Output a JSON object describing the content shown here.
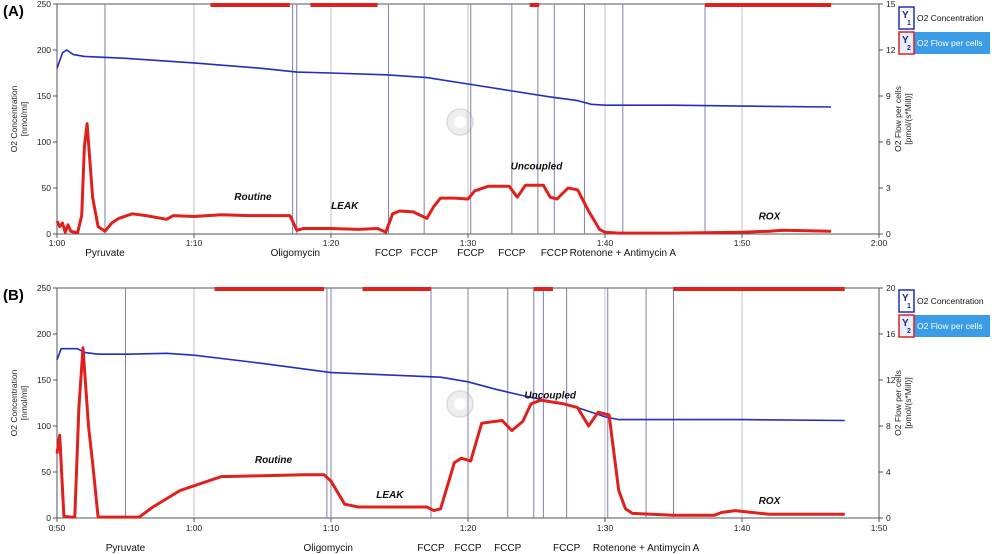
{
  "colors": {
    "o2_concentration": "#1f2fbf",
    "o2_flow": "#e0201c",
    "event_line": "#7f7fb0",
    "grid_gray": "#a9a9a9",
    "legend_highlight": "#3a9be6"
  },
  "chart_data": [
    {
      "type": "line",
      "panel_label": "(A)",
      "x_unit": "h:mm",
      "xlim": [
        "1:00",
        "2:00"
      ],
      "x_ticks": [
        "1:00",
        "1:10",
        "1:20",
        "1:30",
        "1:40",
        "1:50",
        "2:00"
      ],
      "ylabel_left": "O2 Concentration\n[nmol/ml]",
      "ylabel_right": "O2 Flow per cells\n[pmol/(s*Mill)]",
      "ylim_left": [
        0,
        250
      ],
      "ylim_right": [
        0,
        15
      ],
      "y_ticks_left": [
        0,
        50,
        100,
        150,
        200,
        250
      ],
      "y_ticks_right": [
        0,
        3,
        6,
        9,
        12,
        15
      ],
      "legend": {
        "placement": "top-right",
        "entries": [
          {
            "badge": "1",
            "label": "O2 Concentration",
            "selected": false
          },
          {
            "badge": "2",
            "label": "O2 Flow per cells",
            "selected": true
          }
        ]
      },
      "event_lines": [
        "1:03.5",
        "1:17.2",
        "1:17.5",
        "1:24.2",
        "1:26.8",
        "1:30.2",
        "1:33.2",
        "1:35.1",
        "1:36.3",
        "1:38.5",
        "1:41.3",
        "1:47.3"
      ],
      "event_labels": [
        {
          "text": "Pyruvate",
          "x": "1:03.5"
        },
        {
          "text": "Oligomycin",
          "x": "1:17.4"
        },
        {
          "text": "FCCP",
          "x": "1:24.2"
        },
        {
          "text": "FCCP",
          "x": "1:26.8"
        },
        {
          "text": "FCCP",
          "x": "1:30.2"
        },
        {
          "text": "FCCP",
          "x": "1:33.2"
        },
        {
          "text": "FCCP",
          "x": "1:36.3"
        },
        {
          "text": "Rotenone + Antimycin A",
          "x": "1:41.3"
        }
      ],
      "marks": [
        {
          "start": "1:11.2",
          "end": "1:17.0"
        },
        {
          "start": "1:18.5",
          "end": "1:23.4"
        },
        {
          "start": "1:34.5",
          "end": "1:35.2"
        },
        {
          "start": "1:47.3",
          "end": "1:56.5"
        }
      ],
      "annotations": [
        {
          "text": "Routine",
          "x": "1:14.3",
          "y": 37
        },
        {
          "text": "LEAK",
          "x": "1:21.0",
          "y": 27
        },
        {
          "text": "Uncoupled",
          "x": "1:35.0",
          "y": 70
        },
        {
          "text": "ROX",
          "x": "1:52.0",
          "y": 16
        }
      ],
      "series": [
        {
          "name": "O2 Concentration",
          "axis": "left",
          "x": [
            "1:00.0",
            "1:00.4",
            "1:00.7",
            "1:01.2",
            "1:02.0",
            "1:05.0",
            "1:10.0",
            "1:15.0",
            "1:17.5",
            "1:20.0",
            "1:24.0",
            "1:27.0",
            "1:30.0",
            "1:33.0",
            "1:36.0",
            "1:38.0",
            "1:39.0",
            "1:40.0",
            "1:45.0",
            "1:50.0",
            "1:56.5"
          ],
          "values": [
            180,
            197,
            200,
            195,
            193,
            191,
            186,
            180,
            176,
            175,
            173,
            170,
            163,
            156,
            149,
            145,
            141,
            140,
            140,
            139,
            138
          ]
        },
        {
          "name": "O2 Flow per cells",
          "axis": "left",
          "x": [
            "1:00.0",
            "1:00.2",
            "1:00.4",
            "1:00.6",
            "1:00.8",
            "1:01.0",
            "1:01.5",
            "1:01.8",
            "1:02.0",
            "1:02.2",
            "1:02.6",
            "1:03.0",
            "1:03.5",
            "1:04.0",
            "1:04.5",
            "1:05.5",
            "1:06.5",
            "1:08.0",
            "1:08.5",
            "1:10.0",
            "1:12.0",
            "1:14.0",
            "1:16.0",
            "1:17.0",
            "1:17.2",
            "1:17.5",
            "1:18.0",
            "1:20.0",
            "1:22.0",
            "1:23.4",
            "1:24.0",
            "1:24.5",
            "1:25.0",
            "1:26.0",
            "1:27.0",
            "1:27.5",
            "1:28.0",
            "1:29.0",
            "1:30.0",
            "1:30.5",
            "1:31.5",
            "1:33.0",
            "1:33.6",
            "1:34.2",
            "1:35.5",
            "1:36.0",
            "1:36.5",
            "1:37.3",
            "1:38.0",
            "1:38.8",
            "1:39.6",
            "1:40.0",
            "1:41.0",
            "1:45.0",
            "1:50.0",
            "1:52.0",
            "1:53.0",
            "1:56.5"
          ],
          "values": [
            14,
            8,
            12,
            2,
            10,
            3,
            1,
            20,
            95,
            120,
            40,
            8,
            3,
            12,
            17,
            22,
            20,
            16,
            20,
            19,
            21,
            20,
            20,
            20,
            14,
            4,
            6,
            6,
            5,
            6,
            2,
            22,
            25,
            24,
            17,
            30,
            39,
            39,
            38,
            47,
            52,
            52,
            40,
            53,
            53,
            40,
            38,
            50,
            48,
            25,
            5,
            2,
            1,
            1,
            2,
            3,
            4,
            3
          ]
        }
      ]
    },
    {
      "type": "line",
      "panel_label": "(B)",
      "x_unit": "h:mm",
      "xlim": [
        "0:50",
        "1:50"
      ],
      "x_ticks": [
        "0:50",
        "1:00",
        "1:10",
        "1:20",
        "1:30",
        "1:40",
        "1:50"
      ],
      "ylabel_left": "O2 Concentration\n[nmol/ml]",
      "ylabel_right": "O2 Flow per cells\n[pmol/(s*Mill)]",
      "ylim_left": [
        0,
        250
      ],
      "ylim_right": [
        0,
        20
      ],
      "y_ticks_left": [
        0,
        50,
        100,
        150,
        200,
        250
      ],
      "y_ticks_right": [
        0,
        4,
        8,
        12,
        16,
        20
      ],
      "legend": {
        "placement": "top-right",
        "entries": [
          {
            "badge": "1",
            "label": "O2 Concentration",
            "selected": false
          },
          {
            "badge": "2",
            "label": "O2 Flow per cells",
            "selected": true
          }
        ]
      },
      "event_lines": [
        "0:55.0",
        "1:09.7",
        "1:10.0",
        "1:17.3",
        "1:20.0",
        "1:22.9",
        "1:24.8",
        "1:25.5",
        "1:27.2",
        "1:30.2",
        "1:33.0",
        "1:35.0"
      ],
      "event_labels": [
        {
          "text": "Pyruvate",
          "x": "0:55.0"
        },
        {
          "text": "Oligomycin",
          "x": "1:09.8"
        },
        {
          "text": "FCCP",
          "x": "1:17.3"
        },
        {
          "text": "FCCP",
          "x": "1:20.0"
        },
        {
          "text": "FCCP",
          "x": "1:22.9"
        },
        {
          "text": "FCCP",
          "x": "1:27.2"
        },
        {
          "text": "Rotenone + Antimycin A",
          "x": "1:33.0"
        }
      ],
      "marks": [
        {
          "start": "1:01.5",
          "end": "1:09.5"
        },
        {
          "start": "1:12.3",
          "end": "1:17.3"
        },
        {
          "start": "1:24.8",
          "end": "1:26.2"
        },
        {
          "start": "1:35.0",
          "end": "1:47.5"
        }
      ],
      "annotations": [
        {
          "text": "Routine",
          "x": "1:05.8",
          "y": 60
        },
        {
          "text": "LEAK",
          "x": "1:14.3",
          "y": 22
        },
        {
          "text": "Uncoupled",
          "x": "1:26.0",
          "y": 130
        },
        {
          "text": "ROX",
          "x": "1:42.0",
          "y": 15
        }
      ],
      "series": [
        {
          "name": "O2 Concentration",
          "axis": "left",
          "x": [
            "0:50.0",
            "0:50.3",
            "0:51.5",
            "0:52.0",
            "0:53.0",
            "0:55.0",
            "0:58.0",
            "1:00.0",
            "1:05.0",
            "1:10.0",
            "1:15.0",
            "1:18.0",
            "1:20.0",
            "1:22.0",
            "1:24.0",
            "1:26.0",
            "1:28.0",
            "1:30.0",
            "1:31.0",
            "1:35.0",
            "1:40.0",
            "1:47.5"
          ],
          "values": [
            172,
            184,
            184,
            180,
            178,
            178,
            179,
            177,
            168,
            158,
            155,
            153,
            148,
            140,
            133,
            127,
            120,
            110,
            107,
            107,
            107,
            106
          ]
        },
        {
          "name": "O2 Flow per cells",
          "axis": "left",
          "x": [
            "0:50.0",
            "0:50.2",
            "0:50.5",
            "0:51.0",
            "0:51.3",
            "0:51.6",
            "0:51.9",
            "0:52.3",
            "0:52.6",
            "0:53.0",
            "0:53.5",
            "0:54.0",
            "0:55.0",
            "0:56.0",
            "0:57.0",
            "0:59.0",
            "1:01.0",
            "1:02.0",
            "1:05.0",
            "1:08.0",
            "1:09.5",
            "1:10.0",
            "1:11.0",
            "1:12.0",
            "1:16.0",
            "1:17.0",
            "1:17.5",
            "1:18.0",
            "1:19.0",
            "1:19.5",
            "1:20.2",
            "1:21.0",
            "1:22.5",
            "1:23.2",
            "1:24.0",
            "1:24.6",
            "1:25.3",
            "1:27.0",
            "1:28.0",
            "1:28.8",
            "1:29.5",
            "1:30.3",
            "1:31.0",
            "1:31.5",
            "1:32.0",
            "1:35.0",
            "1:38.0",
            "1:38.5",
            "1:39.5",
            "1:42.0",
            "1:44.0",
            "1:47.5"
          ],
          "values": [
            70,
            90,
            2,
            1,
            1,
            120,
            185,
            100,
            60,
            1,
            1,
            1,
            1,
            1,
            12,
            30,
            40,
            45,
            46,
            47,
            47,
            40,
            15,
            12,
            12,
            12,
            8,
            10,
            60,
            65,
            62,
            103,
            106,
            95,
            105,
            124,
            128,
            124,
            120,
            100,
            115,
            112,
            30,
            10,
            5,
            3,
            3,
            6,
            8,
            4,
            4,
            4
          ]
        }
      ]
    }
  ]
}
